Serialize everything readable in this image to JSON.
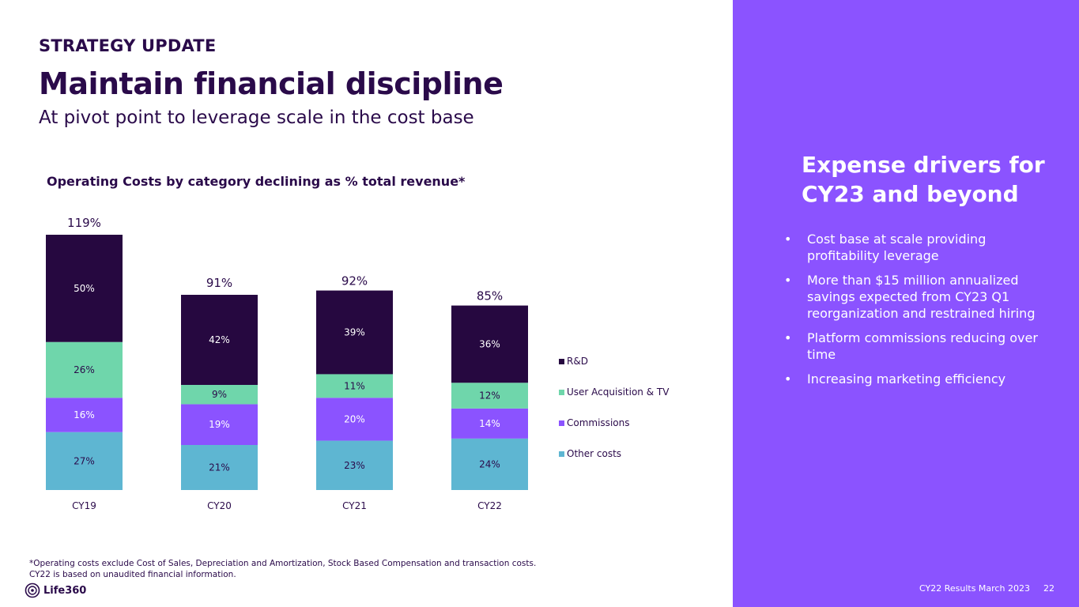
{
  "header": {
    "eyebrow": "STRATEGY UPDATE",
    "title": "Maintain financial discipline",
    "subtitle": "At pivot point to leverage scale in the cost base"
  },
  "chart_data": {
    "type": "bar",
    "stacked": true,
    "title": "Operating Costs by category declining as % total revenue*",
    "categories": [
      "CY19",
      "CY20",
      "CY21",
      "CY22"
    ],
    "totals": [
      119,
      91,
      92,
      85
    ],
    "total_labels": [
      "119%",
      "91%",
      "92%",
      "85%"
    ],
    "series": [
      {
        "name": "Other costs",
        "values": [
          27,
          21,
          23,
          24
        ],
        "labels": [
          "27%",
          "21%",
          "23%",
          "24%"
        ],
        "color": "#5eb6d2"
      },
      {
        "name": "Commissions",
        "values": [
          16,
          19,
          20,
          14
        ],
        "labels": [
          "16%",
          "19%",
          "20%",
          "14%"
        ],
        "color": "#8b53ff"
      },
      {
        "name": "User Acquisition & TV",
        "values": [
          26,
          9,
          11,
          12
        ],
        "labels": [
          "26%",
          "9%",
          "11%",
          "12%"
        ],
        "color": "#6fd6ab"
      },
      {
        "name": "R&D",
        "values": [
          50,
          42,
          39,
          36
        ],
        "labels": [
          "50%",
          "42%",
          "39%",
          "36%"
        ],
        "color": "#260840"
      }
    ],
    "legend_order": [
      "R&D",
      "User Acquisition & TV",
      "Commissions",
      "Other costs"
    ],
    "ylim": [
      0,
      119
    ],
    "xlabel": "",
    "ylabel": "",
    "grid": false,
    "legend_position": "right"
  },
  "footnote": {
    "line1": "*Operating costs exclude Cost of Sales, Depreciation and Amortization, Stock Based Compensation and transaction costs.",
    "line2": "CY22 is based on unaudited financial information."
  },
  "logo": {
    "text": "Life360"
  },
  "panel": {
    "heading": "Expense drivers for CY23 and beyond",
    "bullets": [
      "Cost base at scale providing profitability leverage",
      "More than $15 million annualized savings expected from CY23 Q1 reorganization and restrained hiring",
      "Platform commissions reducing over time",
      "Increasing marketing efficiency"
    ],
    "bullet_char": "•",
    "footer": "CY22 Results March 2023",
    "page_number": "22"
  },
  "colors": {
    "panel_bg": "#8b53ff",
    "text_dark": "#2a0a4a"
  }
}
